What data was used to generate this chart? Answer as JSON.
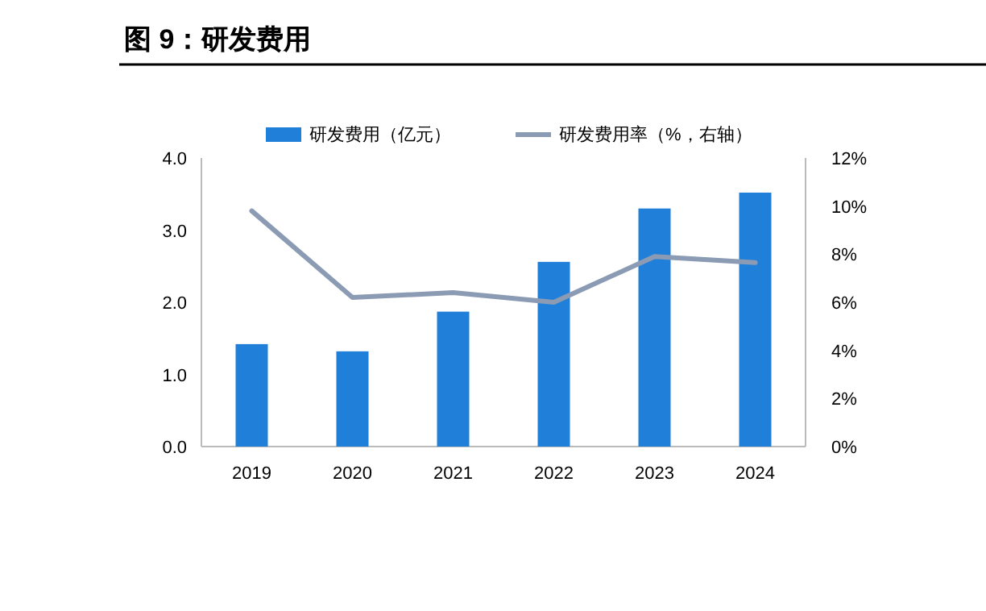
{
  "chart_data": {
    "type": "bar",
    "title": "图 9：研发费用",
    "categories": [
      "2019",
      "2020",
      "2021",
      "2022",
      "2023",
      "2024"
    ],
    "series": [
      {
        "name": "研发费用（亿元）",
        "color": "#1f7fd9",
        "values": [
          1.42,
          1.32,
          1.87,
          2.56,
          3.3,
          3.52
        ]
      },
      {
        "name": "研发费用率（%，右轴）",
        "type": "line",
        "axis": "y2",
        "color": "#8a9bb3",
        "values": [
          9.8,
          6.2,
          6.4,
          6.0,
          7.9,
          7.65
        ]
      }
    ],
    "ylim": [
      0,
      4
    ],
    "yticks": [
      {
        "value": 0,
        "label": "0.0"
      },
      {
        "value": 1,
        "label": "1.0"
      },
      {
        "value": 2,
        "label": "2.0"
      },
      {
        "value": 3,
        "label": "3.0"
      },
      {
        "value": 4,
        "label": "4.0"
      }
    ],
    "y2lim": [
      0,
      12
    ],
    "y2ticks": [
      {
        "value": 0,
        "label": "0%"
      },
      {
        "value": 2,
        "label": "2%"
      },
      {
        "value": 4,
        "label": "4%"
      },
      {
        "value": 6,
        "label": "6%"
      },
      {
        "value": 8,
        "label": "8%"
      },
      {
        "value": 10,
        "label": "10%"
      },
      {
        "value": 12,
        "label": "12%"
      }
    ],
    "legend": "top",
    "grid": false
  }
}
